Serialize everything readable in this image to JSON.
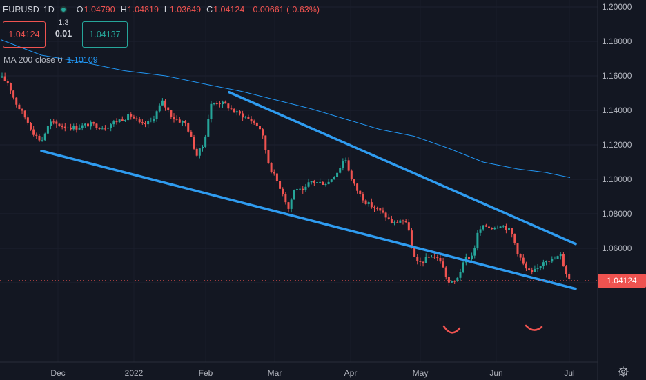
{
  "symbol": {
    "ticker": "EURUSD",
    "interval": "1D"
  },
  "ohlc": {
    "o_label": "O",
    "o_value": "1.04790",
    "h_label": "H",
    "h_value": "1.04819",
    "l_label": "L",
    "l_value": "1.03649",
    "c_label": "C",
    "c_value": "1.04124",
    "change": "-0.00661 (-0.63%)"
  },
  "trade": {
    "sell_price": "1.04124",
    "spread_top": "1.3",
    "spread_bottom": "0.01",
    "buy_price": "1.04137"
  },
  "indicator": {
    "label": "MA 200 close 0",
    "value": "1.10109"
  },
  "last_price_label": "1.04124",
  "y_axis_labels": [
    "1.20000",
    "1.18000",
    "1.16000",
    "1.14000",
    "1.12000",
    "1.10000",
    "1.08000",
    "1.06000",
    "1.04000"
  ],
  "x_axis_labels": [
    "Dec",
    "2022",
    "Feb",
    "Mar",
    "Apr",
    "May",
    "Jun",
    "Jul"
  ],
  "colors": {
    "background": "#131722",
    "up": "#26a69a",
    "down": "#ef5350",
    "ma": "#2196f3",
    "trendline": "#2f9cf0",
    "annotation": "#ef5350"
  },
  "icons": {
    "status": "green-dot-icon",
    "settings": "gear-icon"
  },
  "chart_data": {
    "type": "candlestick",
    "ylim": [
      1.022,
      1.202
    ],
    "ma_200_points": [
      [
        1,
        1.181
      ],
      [
        60,
        1.172
      ],
      [
        120,
        1.168
      ],
      [
        180,
        1.163
      ],
      [
        240,
        1.16
      ],
      [
        300,
        1.155
      ],
      [
        350,
        1.151
      ],
      [
        400,
        1.146
      ],
      [
        450,
        1.141
      ],
      [
        500,
        1.135
      ],
      [
        550,
        1.129
      ],
      [
        600,
        1.125
      ],
      [
        650,
        1.118
      ],
      [
        700,
        1.11
      ],
      [
        750,
        1.106
      ],
      [
        790,
        1.104
      ],
      [
        826,
        1.101
      ]
    ],
    "trendlines": [
      {
        "from": [
          60,
          1.1165
        ],
        "to": [
          834,
          1.0365
        ]
      },
      {
        "from": [
          332,
          1.1505
        ],
        "to": [
          834,
          1.0625
        ]
      }
    ],
    "last_close": 1.04124
  }
}
